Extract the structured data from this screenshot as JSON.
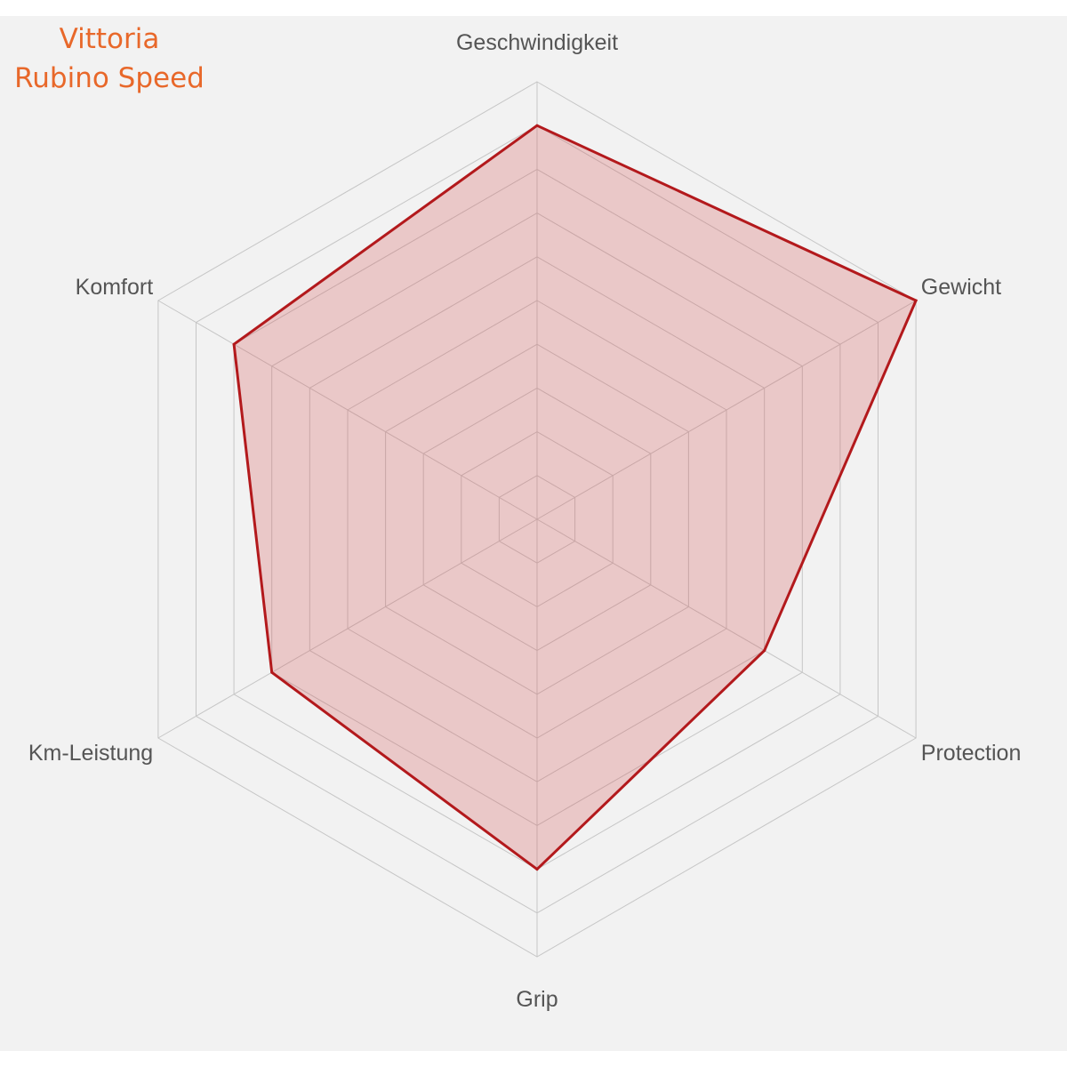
{
  "chart_data": {
    "type": "radar",
    "title": [
      "Vittoria",
      "Rubino Speed"
    ],
    "axes": [
      "Geschwindigkeit",
      "Gewicht",
      "Protection",
      "Grip",
      "Km-Leistung",
      "Komfort"
    ],
    "rlim": [
      0,
      10
    ],
    "rings": 10,
    "grid": true,
    "legend": "none",
    "series": [
      {
        "values": [
          9,
          10,
          6,
          8,
          7,
          8
        ]
      }
    ]
  },
  "colors": {
    "title": "#e8682a",
    "series_line": "#b3191c",
    "series_fill": "rgba(214, 82, 82, 0.26)",
    "grid": "#c6c6c6",
    "label": "#555555",
    "background": "#f2f2f2"
  }
}
